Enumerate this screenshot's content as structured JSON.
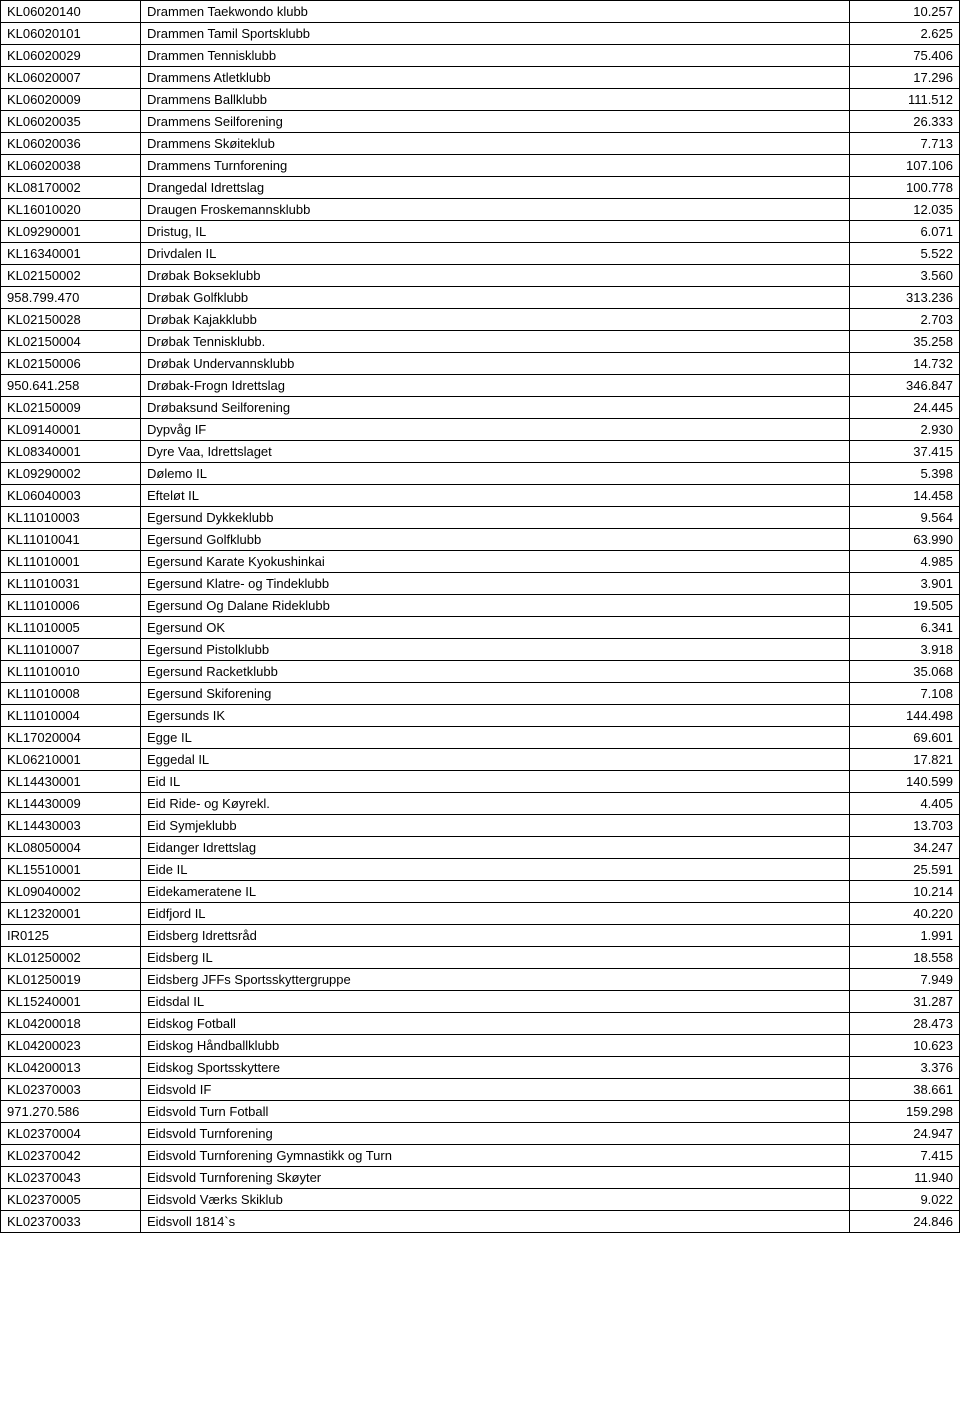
{
  "table": {
    "columns": [
      {
        "key": "code",
        "class": "col-code"
      },
      {
        "key": "name",
        "class": "col-name"
      },
      {
        "key": "value",
        "class": "col-value"
      }
    ],
    "rows": [
      [
        "KL06020140",
        "Drammen Taekwondo klubb",
        "10.257"
      ],
      [
        "KL06020101",
        "Drammen Tamil Sportsklubb",
        "2.625"
      ],
      [
        "KL06020029",
        "Drammen Tennisklubb",
        "75.406"
      ],
      [
        "KL06020007",
        "Drammens Atletklubb",
        "17.296"
      ],
      [
        "KL06020009",
        "Drammens Ballklubb",
        "111.512"
      ],
      [
        "KL06020035",
        "Drammens Seilforening",
        "26.333"
      ],
      [
        "KL06020036",
        "Drammens Skøiteklub",
        "7.713"
      ],
      [
        "KL06020038",
        "Drammens Turnforening",
        "107.106"
      ],
      [
        "KL08170002",
        "Drangedal Idrettslag",
        "100.778"
      ],
      [
        "KL16010020",
        "Draugen Froskemannsklubb",
        "12.035"
      ],
      [
        "KL09290001",
        "Dristug, IL",
        "6.071"
      ],
      [
        "KL16340001",
        "Drivdalen IL",
        "5.522"
      ],
      [
        "KL02150002",
        "Drøbak Bokseklubb",
        "3.560"
      ],
      [
        "958.799.470",
        "Drøbak Golfklubb",
        "313.236"
      ],
      [
        "KL02150028",
        "Drøbak Kajakklubb",
        "2.703"
      ],
      [
        "KL02150004",
        "Drøbak Tennisklubb.",
        "35.258"
      ],
      [
        "KL02150006",
        "Drøbak Undervannsklubb",
        "14.732"
      ],
      [
        "950.641.258",
        "Drøbak-Frogn Idrettslag",
        "346.847"
      ],
      [
        "KL02150009",
        "Drøbaksund Seilforening",
        "24.445"
      ],
      [
        "KL09140001",
        "Dypvåg IF",
        "2.930"
      ],
      [
        "KL08340001",
        "Dyre Vaa, Idrettslaget",
        "37.415"
      ],
      [
        "KL09290002",
        "Dølemo IL",
        "5.398"
      ],
      [
        "KL06040003",
        "Efteløt IL",
        "14.458"
      ],
      [
        "KL11010003",
        "Egersund Dykkeklubb",
        "9.564"
      ],
      [
        "KL11010041",
        "Egersund Golfklubb",
        "63.990"
      ],
      [
        "KL11010001",
        "Egersund Karate Kyokushinkai",
        "4.985"
      ],
      [
        "KL11010031",
        "Egersund Klatre- og Tindeklubb",
        "3.901"
      ],
      [
        "KL11010006",
        "Egersund Og Dalane Rideklubb",
        "19.505"
      ],
      [
        "KL11010005",
        "Egersund OK",
        "6.341"
      ],
      [
        "KL11010007",
        "Egersund Pistolklubb",
        "3.918"
      ],
      [
        "KL11010010",
        "Egersund Racketklubb",
        "35.068"
      ],
      [
        "KL11010008",
        "Egersund Skiforening",
        "7.108"
      ],
      [
        "KL11010004",
        "Egersunds IK",
        "144.498"
      ],
      [
        "KL17020004",
        "Egge IL",
        "69.601"
      ],
      [
        "KL06210001",
        "Eggedal IL",
        "17.821"
      ],
      [
        "KL14430001",
        "Eid IL",
        "140.599"
      ],
      [
        "KL14430009",
        "Eid Ride- og Køyrekl.",
        "4.405"
      ],
      [
        "KL14430003",
        "Eid Symjeklubb",
        "13.703"
      ],
      [
        "KL08050004",
        "Eidanger Idrettslag",
        "34.247"
      ],
      [
        "KL15510001",
        "Eide IL",
        "25.591"
      ],
      [
        "KL09040002",
        "Eidekameratene IL",
        "10.214"
      ],
      [
        "KL12320001",
        "Eidfjord IL",
        "40.220"
      ],
      [
        "IR0125",
        "Eidsberg Idrettsråd",
        "1.991"
      ],
      [
        "KL01250002",
        "Eidsberg IL",
        "18.558"
      ],
      [
        "KL01250019",
        "Eidsberg JFFs  Sportsskyttergruppe",
        "7.949"
      ],
      [
        "KL15240001",
        "Eidsdal IL",
        "31.287"
      ],
      [
        "KL04200018",
        "Eidskog Fotball",
        "28.473"
      ],
      [
        "KL04200023",
        "Eidskog Håndballklubb",
        "10.623"
      ],
      [
        "KL04200013",
        "Eidskog Sportsskyttere",
        "3.376"
      ],
      [
        "KL02370003",
        "Eidsvold IF",
        "38.661"
      ],
      [
        "971.270.586",
        "Eidsvold Turn Fotball",
        "159.298"
      ],
      [
        "KL02370004",
        "Eidsvold Turnforening",
        "24.947"
      ],
      [
        "KL02370042",
        "Eidsvold Turnforening Gymnastikk og Turn",
        "7.415"
      ],
      [
        "KL02370043",
        "Eidsvold Turnforening Skøyter",
        "11.940"
      ],
      [
        "KL02370005",
        "Eidsvold Værks Skiklub",
        "9.022"
      ],
      [
        "KL02370033",
        "Eidsvoll 1814`s",
        "24.846"
      ]
    ]
  }
}
